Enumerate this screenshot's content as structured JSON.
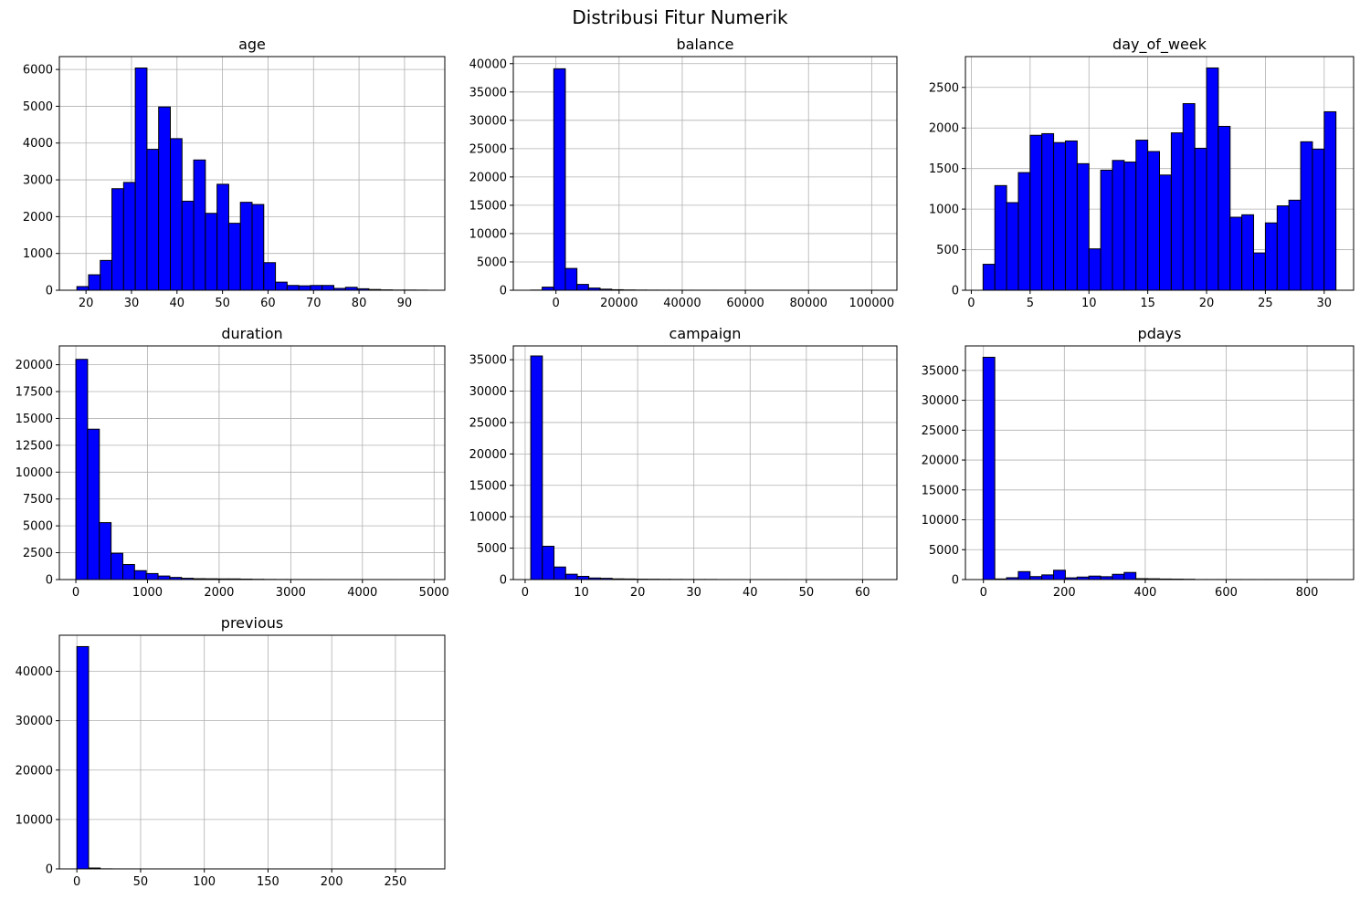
{
  "figure": {
    "title": "Distribusi Fitur Numerik",
    "bar_color": "#0000ff",
    "edge_color": "#000000",
    "grid_color": "#b0b0b0"
  },
  "chart_data": [
    {
      "type": "bar",
      "title": "age",
      "grid": true,
      "xlim": [
        14.15,
        98.85
      ],
      "ylim": [
        0,
        6350
      ],
      "xticks": [
        20,
        30,
        40,
        50,
        60,
        70,
        80,
        90
      ],
      "xtick_labels": [
        "20",
        "30",
        "40",
        "50",
        "60",
        "70",
        "80",
        "90"
      ],
      "yticks": [
        0,
        1000,
        2000,
        3000,
        4000,
        5000,
        6000
      ],
      "ytick_labels": [
        "0",
        "1000",
        "2000",
        "3000",
        "4000",
        "5000",
        "6000"
      ],
      "bin_start": 18,
      "bin_width": 2.5667,
      "values": [
        100,
        420,
        810,
        2760,
        2930,
        6040,
        3830,
        4980,
        4120,
        2420,
        3540,
        2090,
        2880,
        1820,
        2390,
        2330,
        750,
        220,
        130,
        120,
        130,
        130,
        50,
        80,
        40,
        20,
        10,
        5,
        5,
        3
      ]
    },
    {
      "type": "bar",
      "title": "balance",
      "grid": true,
      "xlim": [
        -13500,
        108000
      ],
      "ylim": [
        0,
        41250
      ],
      "xticks": [
        0,
        20000,
        40000,
        60000,
        80000,
        100000
      ],
      "xtick_labels": [
        "0",
        "20000",
        "40000",
        "60000",
        "80000",
        "100000"
      ],
      "yticks": [
        0,
        5000,
        10000,
        15000,
        20000,
        25000,
        30000,
        35000,
        40000
      ],
      "ytick_labels": [
        "0",
        "5000",
        "10000",
        "15000",
        "20000",
        "25000",
        "30000",
        "35000",
        "40000"
      ],
      "bin_start": -8019,
      "bin_width": 3667.5,
      "values": [
        30,
        550,
        39100,
        3850,
        1030,
        390,
        190,
        90,
        50,
        30,
        20,
        15,
        10,
        8,
        6,
        5,
        4,
        3,
        3,
        2,
        2,
        2,
        1,
        1,
        1,
        1,
        1,
        1,
        1,
        2
      ]
    },
    {
      "type": "bar",
      "title": "day_of_week",
      "grid": true,
      "xlim": [
        -0.5,
        32.5
      ],
      "ylim": [
        0,
        2880
      ],
      "xticks": [
        0,
        5,
        10,
        15,
        20,
        25,
        30
      ],
      "xtick_labels": [
        "0",
        "5",
        "10",
        "15",
        "20",
        "25",
        "30"
      ],
      "yticks": [
        0,
        500,
        1000,
        1500,
        2000,
        2500
      ],
      "ytick_labels": [
        "0",
        "500",
        "1000",
        "1500",
        "2000",
        "2500"
      ],
      "bin_start": 1,
      "bin_width": 1,
      "values": [
        320,
        1290,
        1080,
        1450,
        1910,
        1930,
        1820,
        1840,
        1560,
        510,
        1480,
        1600,
        1580,
        1850,
        1710,
        1420,
        1940,
        2300,
        1750,
        2740,
        2020,
        900,
        930,
        460,
        830,
        1040,
        1110,
        1830,
        1740,
        2200
      ]
    },
    {
      "type": "bar",
      "title": "duration",
      "grid": true,
      "xlim": [
        -230,
        5150
      ],
      "ylim": [
        0,
        21750
      ],
      "xticks": [
        0,
        1000,
        2000,
        3000,
        4000,
        5000
      ],
      "xtick_labels": [
        "0",
        "1000",
        "2000",
        "3000",
        "4000",
        "5000"
      ],
      "yticks": [
        0,
        2500,
        5000,
        7500,
        10000,
        12500,
        15000,
        17500,
        20000
      ],
      "ytick_labels": [
        "0",
        "2500",
        "5000",
        "7500",
        "10000",
        "12500",
        "15000",
        "17500",
        "20000"
      ],
      "bin_start": 0,
      "bin_width": 163.9,
      "values": [
        20500,
        14000,
        5300,
        2450,
        1400,
        830,
        560,
        330,
        200,
        120,
        80,
        70,
        60,
        60,
        40,
        25,
        15,
        10,
        8,
        6,
        5,
        4,
        3,
        3,
        2,
        2,
        2,
        1,
        1,
        1
      ]
    },
    {
      "type": "bar",
      "title": "campaign",
      "grid": true,
      "xlim": [
        -2.1,
        66.1
      ],
      "ylim": [
        0,
        37200
      ],
      "xticks": [
        0,
        10,
        20,
        30,
        40,
        50,
        60
      ],
      "xtick_labels": [
        "0",
        "10",
        "20",
        "30",
        "40",
        "50",
        "60"
      ],
      "yticks": [
        0,
        5000,
        10000,
        15000,
        20000,
        25000,
        30000,
        35000
      ],
      "ytick_labels": [
        "0",
        "5000",
        "10000",
        "15000",
        "20000",
        "25000",
        "30000",
        "35000"
      ],
      "bin_start": 1,
      "bin_width": 2.0667,
      "values": [
        35600,
        5300,
        2000,
        850,
        510,
        250,
        200,
        110,
        90,
        60,
        50,
        40,
        30,
        25,
        20,
        18,
        6,
        4,
        3,
        3,
        2,
        2,
        1,
        1,
        1,
        1,
        1,
        1,
        1,
        1
      ]
    },
    {
      "type": "bar",
      "title": "pdays",
      "grid": true,
      "xlim": [
        -44.5,
        915
      ],
      "ylim": [
        0,
        39100
      ],
      "xticks": [
        0,
        200,
        400,
        600,
        800
      ],
      "xtick_labels": [
        "0",
        "200",
        "400",
        "600",
        "800"
      ],
      "yticks": [
        0,
        5000,
        10000,
        15000,
        20000,
        25000,
        30000,
        35000
      ],
      "ytick_labels": [
        "0",
        "5000",
        "10000",
        "15000",
        "20000",
        "25000",
        "30000",
        "35000"
      ],
      "bin_start": -1,
      "bin_width": 29.07,
      "values": [
        37200,
        100,
        310,
        1330,
        500,
        780,
        1560,
        290,
        420,
        580,
        480,
        880,
        1190,
        150,
        130,
        90,
        70,
        50,
        10,
        10,
        10,
        10,
        5,
        5,
        5,
        3,
        3,
        2,
        2,
        1
      ]
    },
    {
      "type": "bar",
      "title": "previous",
      "grid": true,
      "xlim": [
        -13.75,
        288.75
      ],
      "ylim": [
        0,
        47300
      ],
      "xticks": [
        0,
        50,
        100,
        150,
        200,
        250
      ],
      "xtick_labels": [
        "0",
        "50",
        "100",
        "150",
        "200",
        "250"
      ],
      "yticks": [
        0,
        10000,
        20000,
        30000,
        40000
      ],
      "ytick_labels": [
        "0",
        "10000",
        "20000",
        "30000",
        "40000"
      ],
      "bin_start": 0,
      "bin_width": 9.1667,
      "values": [
        45000,
        180,
        20,
        5,
        3,
        2,
        1,
        1,
        1,
        1,
        1,
        1,
        1,
        1,
        1,
        1,
        1,
        1,
        1,
        1,
        1,
        1,
        1,
        1,
        1,
        1,
        1,
        1,
        1,
        1
      ]
    }
  ]
}
